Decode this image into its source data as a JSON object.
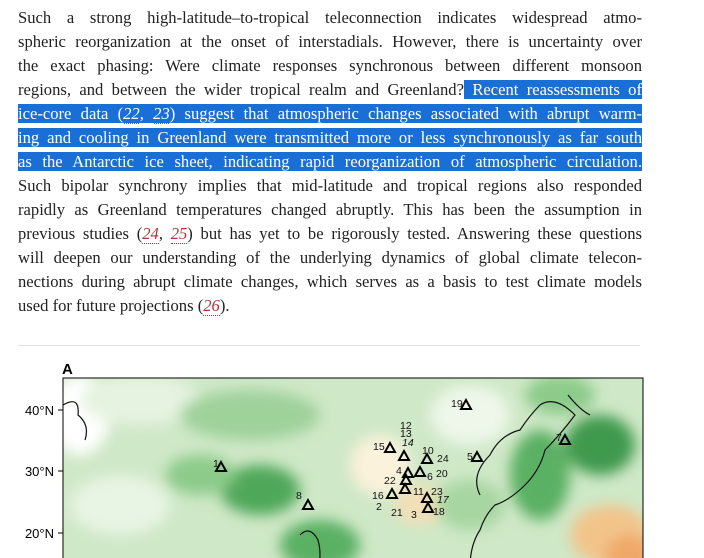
{
  "body": {
    "lines": [
      [
        {
          "text": "Such a strong high-latitude–to-tropical teleconnection indicates widespread atmo-",
          "kind": "plain"
        }
      ],
      [
        {
          "text": "spheric reorganization at the onset of interstadials. However, there is uncertainty over",
          "kind": "plain"
        }
      ],
      [
        {
          "text": "the exact phasing: Were climate responses synchronous between different monsoon",
          "kind": "plain"
        }
      ],
      [
        {
          "text": "regions, and between the wider tropical realm and Greenland?",
          "kind": "plain"
        },
        {
          "text": " Recent reassessments of",
          "kind": "selected"
        }
      ],
      [
        {
          "text": "ice-core data (",
          "kind": "selected"
        },
        {
          "text": "22",
          "kind": "selected-cite"
        },
        {
          "text": ", ",
          "kind": "selected"
        },
        {
          "text": "23",
          "kind": "selected-cite"
        },
        {
          "text": ") suggest that atmospheric changes associated with abrupt warm-",
          "kind": "selected"
        }
      ],
      [
        {
          "text": "ing and cooling in Greenland were transmitted more or less synchronously as far south",
          "kind": "selected"
        }
      ],
      [
        {
          "text": "as the Antarctic ice sheet, indicating rapid reorganization of atmospheric circulation.",
          "kind": "selected"
        }
      ],
      [
        {
          "text": "Such bipolar synchrony implies that mid-latitude and tropical regions also responded",
          "kind": "plain"
        }
      ],
      [
        {
          "text": "rapidly as Greenland temperatures changed abruptly. This has been the assumption in",
          "kind": "plain"
        }
      ],
      [
        {
          "text": "previous studies (",
          "kind": "plain"
        },
        {
          "text": "24",
          "kind": "cite"
        },
        {
          "text": ", ",
          "kind": "plain"
        },
        {
          "text": "25",
          "kind": "cite"
        },
        {
          "text": ") but has yet to be rigorously tested. Answering these questions",
          "kind": "plain"
        }
      ],
      [
        {
          "text": "will deepen our understanding of the underlying dynamics of global climate telecon-",
          "kind": "plain"
        }
      ],
      [
        {
          "text": "nections during abrupt climate changes, which serves as a basis to test climate models",
          "kind": "plain"
        }
      ],
      [
        {
          "text": "used for future projections (",
          "kind": "plain"
        },
        {
          "text": "26",
          "kind": "cite"
        },
        {
          "text": ").",
          "kind": "plain"
        }
      ]
    ]
  },
  "figure": {
    "panel": "A",
    "lat_labels": [
      "40°N",
      "30°N",
      "20°N"
    ],
    "stations": [
      "1",
      "8",
      "19",
      "5",
      "7",
      "15",
      "10",
      "12",
      "13",
      "14",
      "24",
      "20",
      "4",
      "22",
      "6",
      "23",
      "16",
      "11",
      "17",
      "2",
      "21",
      "3",
      "18"
    ]
  }
}
